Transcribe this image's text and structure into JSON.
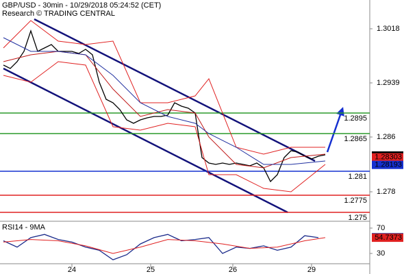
{
  "chart_data": [
    {
      "type": "line",
      "title": "GBP/USD - 30min - 10/29/2018 05:24:52 (CET)",
      "subtitle": "Research © TRADING CENTRAL",
      "ylim": [
        1.2738,
        1.306
      ],
      "yticks": [
        1.3018,
        1.2939,
        1.286,
        1.278
      ],
      "xlim": [
        -0.5,
        53.5
      ],
      "xticks": [
        {
          "value": 10,
          "label": "24"
        },
        {
          "value": 21.5,
          "label": "25"
        },
        {
          "value": 33.5,
          "label": "26"
        },
        {
          "value": 45,
          "label": "29"
        }
      ],
      "series": [
        {
          "color": "#000000",
          "x": [
            0,
            1,
            2,
            3,
            4,
            5,
            6,
            7,
            8,
            9,
            10,
            11,
            12,
            13,
            14,
            15,
            16,
            17,
            18,
            19,
            20,
            21,
            22,
            23,
            24,
            25,
            26,
            27,
            28,
            29,
            30,
            31,
            32,
            33,
            34,
            35,
            36,
            37,
            38,
            39,
            40,
            41,
            42,
            43,
            44,
            45,
            46,
            47
          ],
          "values": [
            1.2965,
            1.296,
            1.297,
            1.2985,
            1.3015,
            1.2985,
            1.299,
            1.2995,
            1.2985,
            1.2985,
            1.2985,
            1.2982,
            1.2988,
            1.298,
            1.294,
            1.2915,
            1.291,
            1.29,
            1.2885,
            1.288,
            1.2885,
            1.2888,
            1.289,
            1.289,
            1.2892,
            1.291,
            1.2905,
            1.2902,
            1.2895,
            1.283,
            1.2822,
            1.282,
            1.2822,
            1.282,
            1.2822,
            1.282,
            1.2818,
            1.2822,
            1.2815,
            1.2795,
            1.2805,
            1.283,
            1.284,
            1.2838,
            1.2832,
            1.2828,
            1.2832,
            1.2834
          ]
        },
        {
          "color": "#e02020",
          "x": [
            0,
            4,
            8,
            12,
            16,
            20,
            24,
            28,
            30,
            34,
            38,
            42,
            47
          ],
          "values": [
            1.299,
            1.303,
            1.3,
            1.2995,
            1.3,
            1.291,
            1.291,
            1.292,
            1.2945,
            1.2845,
            1.2835,
            1.2845,
            1.2845
          ]
        },
        {
          "color": "#e02020",
          "x": [
            0,
            4,
            8,
            12,
            16,
            20,
            24,
            28,
            30,
            34,
            38,
            42,
            47
          ],
          "values": [
            1.295,
            1.294,
            1.297,
            1.2965,
            1.2875,
            1.287,
            1.288,
            1.2875,
            1.2805,
            1.2805,
            1.2785,
            1.278,
            1.282
          ]
        },
        {
          "color": "#c01818",
          "x": [
            0,
            4,
            8,
            12,
            16,
            20,
            24,
            28,
            30,
            34,
            38,
            42,
            47
          ],
          "values": [
            1.297,
            1.298,
            1.2985,
            1.298,
            1.293,
            1.289,
            1.29,
            1.2895,
            1.286,
            1.282,
            1.2815,
            1.283,
            1.2835
          ]
        },
        {
          "color": "#2030a0",
          "x": [
            0,
            4,
            8,
            12,
            16,
            20,
            24,
            28,
            30,
            34,
            38,
            42,
            47
          ],
          "values": [
            1.3005,
            1.2985,
            1.2985,
            1.298,
            1.295,
            1.291,
            1.289,
            1.288,
            1.2865,
            1.2845,
            1.282,
            1.282,
            1.2825
          ]
        }
      ],
      "levels": [
        {
          "value": 1.2895,
          "color": "#2a9a2a"
        },
        {
          "value": 1.2865,
          "color": "#2a9a2a"
        },
        {
          "value": 1.281,
          "color": "#1530d0"
        },
        {
          "value": 1.2775,
          "color": "#e02020"
        },
        {
          "value": 1.275,
          "color": "#e02020"
        }
      ],
      "markers": [
        {
          "value": 1.2833,
          "color": "#000000"
        },
        {
          "value": 1.28303,
          "color": "#e02020"
        },
        {
          "value": 1.28193,
          "color": "#1530d0"
        }
      ]
    },
    {
      "type": "line",
      "title": "RSI14 - 9MA",
      "ylim": [
        -2.4,
        78.6
      ],
      "yticks": [
        70,
        30
      ],
      "xlim": [
        -0.5,
        53.5
      ],
      "series": [
        {
          "color": "#1a2a8a",
          "x": [
            0,
            2,
            4,
            6,
            8,
            10,
            12,
            14,
            16,
            18,
            20,
            22,
            24,
            26,
            28,
            30,
            32,
            34,
            36,
            38,
            40,
            42,
            44,
            46
          ],
          "values": [
            50,
            40,
            55,
            60,
            52,
            48,
            40,
            35,
            20,
            28,
            45,
            55,
            60,
            50,
            52,
            55,
            30,
            40,
            38,
            42,
            35,
            40,
            58,
            55
          ]
        },
        {
          "color": "#e02020",
          "x": [
            0,
            4,
            8,
            12,
            16,
            20,
            24,
            28,
            32,
            36,
            40,
            44,
            47
          ],
          "values": [
            48,
            52,
            50,
            42,
            30,
            40,
            52,
            50,
            45,
            38,
            40,
            50,
            55
          ]
        }
      ],
      "markers": [
        {
          "value": 55.6466,
          "color": "#1a2a8a"
        },
        {
          "value": 54.7373,
          "color": "#e02020"
        }
      ]
    }
  ]
}
